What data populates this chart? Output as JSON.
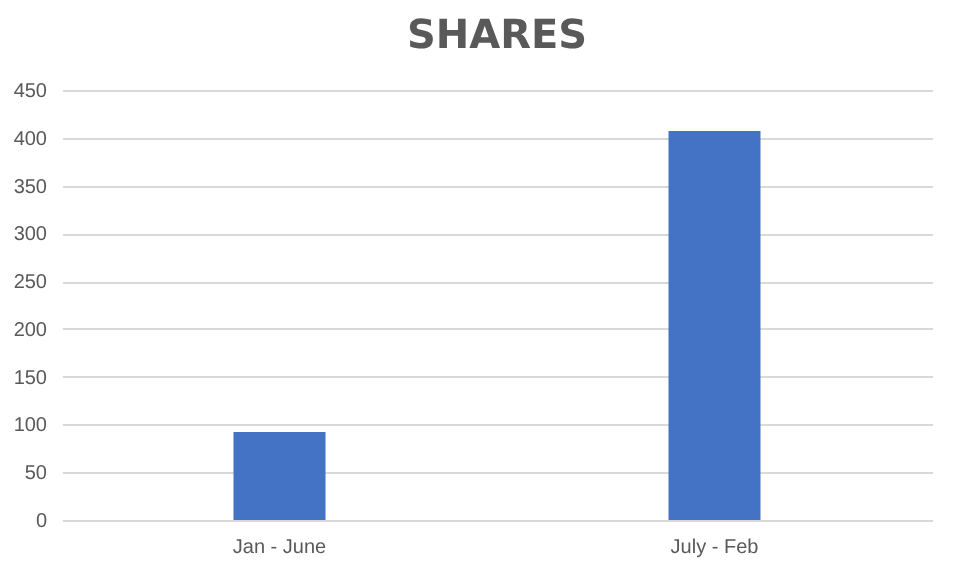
{
  "chart_data": {
    "type": "bar",
    "title": "SHARES",
    "categories": [
      "Jan - June",
      "July - Feb"
    ],
    "values": [
      92,
      407
    ],
    "color": "#4472c4",
    "ylim": [
      0,
      450
    ],
    "yticks": [
      0,
      50,
      100,
      150,
      200,
      250,
      300,
      350,
      400,
      450
    ],
    "grid": "y"
  }
}
